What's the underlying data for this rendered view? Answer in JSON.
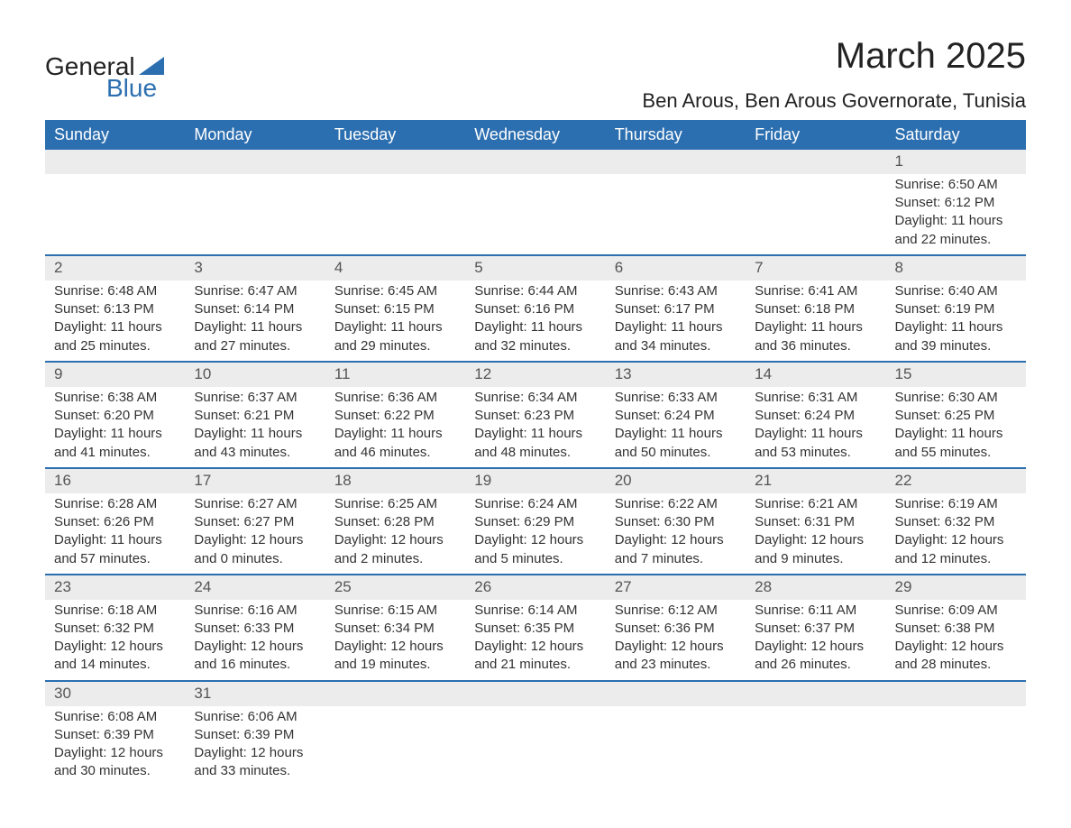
{
  "logo": {
    "text1": "General",
    "text2": "Blue"
  },
  "title": "March 2025",
  "location": "Ben Arous, Ben Arous Governorate, Tunisia",
  "colors": {
    "header_bg": "#2c6fb0",
    "header_text": "#ffffff",
    "daynum_bg": "#ececec",
    "daynum_text": "#555555",
    "body_text": "#333333",
    "row_divider": "#2c6fb0",
    "logo_accent": "#2c6fb0"
  },
  "typography": {
    "title_fontsize": 40,
    "location_fontsize": 22,
    "header_fontsize": 18,
    "daynum_fontsize": 17,
    "cell_fontsize": 15
  },
  "columns": [
    "Sunday",
    "Monday",
    "Tuesday",
    "Wednesday",
    "Thursday",
    "Friday",
    "Saturday"
  ],
  "weeks": [
    {
      "nums": [
        "",
        "",
        "",
        "",
        "",
        "",
        "1"
      ],
      "cells": [
        null,
        null,
        null,
        null,
        null,
        null,
        {
          "sunrise": "Sunrise: 6:50 AM",
          "sunset": "Sunset: 6:12 PM",
          "daylight": "Daylight: 11 hours and 22 minutes."
        }
      ]
    },
    {
      "nums": [
        "2",
        "3",
        "4",
        "5",
        "6",
        "7",
        "8"
      ],
      "cells": [
        {
          "sunrise": "Sunrise: 6:48 AM",
          "sunset": "Sunset: 6:13 PM",
          "daylight": "Daylight: 11 hours and 25 minutes."
        },
        {
          "sunrise": "Sunrise: 6:47 AM",
          "sunset": "Sunset: 6:14 PM",
          "daylight": "Daylight: 11 hours and 27 minutes."
        },
        {
          "sunrise": "Sunrise: 6:45 AM",
          "sunset": "Sunset: 6:15 PM",
          "daylight": "Daylight: 11 hours and 29 minutes."
        },
        {
          "sunrise": "Sunrise: 6:44 AM",
          "sunset": "Sunset: 6:16 PM",
          "daylight": "Daylight: 11 hours and 32 minutes."
        },
        {
          "sunrise": "Sunrise: 6:43 AM",
          "sunset": "Sunset: 6:17 PM",
          "daylight": "Daylight: 11 hours and 34 minutes."
        },
        {
          "sunrise": "Sunrise: 6:41 AM",
          "sunset": "Sunset: 6:18 PM",
          "daylight": "Daylight: 11 hours and 36 minutes."
        },
        {
          "sunrise": "Sunrise: 6:40 AM",
          "sunset": "Sunset: 6:19 PM",
          "daylight": "Daylight: 11 hours and 39 minutes."
        }
      ]
    },
    {
      "nums": [
        "9",
        "10",
        "11",
        "12",
        "13",
        "14",
        "15"
      ],
      "cells": [
        {
          "sunrise": "Sunrise: 6:38 AM",
          "sunset": "Sunset: 6:20 PM",
          "daylight": "Daylight: 11 hours and 41 minutes."
        },
        {
          "sunrise": "Sunrise: 6:37 AM",
          "sunset": "Sunset: 6:21 PM",
          "daylight": "Daylight: 11 hours and 43 minutes."
        },
        {
          "sunrise": "Sunrise: 6:36 AM",
          "sunset": "Sunset: 6:22 PM",
          "daylight": "Daylight: 11 hours and 46 minutes."
        },
        {
          "sunrise": "Sunrise: 6:34 AM",
          "sunset": "Sunset: 6:23 PM",
          "daylight": "Daylight: 11 hours and 48 minutes."
        },
        {
          "sunrise": "Sunrise: 6:33 AM",
          "sunset": "Sunset: 6:24 PM",
          "daylight": "Daylight: 11 hours and 50 minutes."
        },
        {
          "sunrise": "Sunrise: 6:31 AM",
          "sunset": "Sunset: 6:24 PM",
          "daylight": "Daylight: 11 hours and 53 minutes."
        },
        {
          "sunrise": "Sunrise: 6:30 AM",
          "sunset": "Sunset: 6:25 PM",
          "daylight": "Daylight: 11 hours and 55 minutes."
        }
      ]
    },
    {
      "nums": [
        "16",
        "17",
        "18",
        "19",
        "20",
        "21",
        "22"
      ],
      "cells": [
        {
          "sunrise": "Sunrise: 6:28 AM",
          "sunset": "Sunset: 6:26 PM",
          "daylight": "Daylight: 11 hours and 57 minutes."
        },
        {
          "sunrise": "Sunrise: 6:27 AM",
          "sunset": "Sunset: 6:27 PM",
          "daylight": "Daylight: 12 hours and 0 minutes."
        },
        {
          "sunrise": "Sunrise: 6:25 AM",
          "sunset": "Sunset: 6:28 PM",
          "daylight": "Daylight: 12 hours and 2 minutes."
        },
        {
          "sunrise": "Sunrise: 6:24 AM",
          "sunset": "Sunset: 6:29 PM",
          "daylight": "Daylight: 12 hours and 5 minutes."
        },
        {
          "sunrise": "Sunrise: 6:22 AM",
          "sunset": "Sunset: 6:30 PM",
          "daylight": "Daylight: 12 hours and 7 minutes."
        },
        {
          "sunrise": "Sunrise: 6:21 AM",
          "sunset": "Sunset: 6:31 PM",
          "daylight": "Daylight: 12 hours and 9 minutes."
        },
        {
          "sunrise": "Sunrise: 6:19 AM",
          "sunset": "Sunset: 6:32 PM",
          "daylight": "Daylight: 12 hours and 12 minutes."
        }
      ]
    },
    {
      "nums": [
        "23",
        "24",
        "25",
        "26",
        "27",
        "28",
        "29"
      ],
      "cells": [
        {
          "sunrise": "Sunrise: 6:18 AM",
          "sunset": "Sunset: 6:32 PM",
          "daylight": "Daylight: 12 hours and 14 minutes."
        },
        {
          "sunrise": "Sunrise: 6:16 AM",
          "sunset": "Sunset: 6:33 PM",
          "daylight": "Daylight: 12 hours and 16 minutes."
        },
        {
          "sunrise": "Sunrise: 6:15 AM",
          "sunset": "Sunset: 6:34 PM",
          "daylight": "Daylight: 12 hours and 19 minutes."
        },
        {
          "sunrise": "Sunrise: 6:14 AM",
          "sunset": "Sunset: 6:35 PM",
          "daylight": "Daylight: 12 hours and 21 minutes."
        },
        {
          "sunrise": "Sunrise: 6:12 AM",
          "sunset": "Sunset: 6:36 PM",
          "daylight": "Daylight: 12 hours and 23 minutes."
        },
        {
          "sunrise": "Sunrise: 6:11 AM",
          "sunset": "Sunset: 6:37 PM",
          "daylight": "Daylight: 12 hours and 26 minutes."
        },
        {
          "sunrise": "Sunrise: 6:09 AM",
          "sunset": "Sunset: 6:38 PM",
          "daylight": "Daylight: 12 hours and 28 minutes."
        }
      ]
    },
    {
      "nums": [
        "30",
        "31",
        "",
        "",
        "",
        "",
        ""
      ],
      "cells": [
        {
          "sunrise": "Sunrise: 6:08 AM",
          "sunset": "Sunset: 6:39 PM",
          "daylight": "Daylight: 12 hours and 30 minutes."
        },
        {
          "sunrise": "Sunrise: 6:06 AM",
          "sunset": "Sunset: 6:39 PM",
          "daylight": "Daylight: 12 hours and 33 minutes."
        },
        null,
        null,
        null,
        null,
        null
      ]
    }
  ]
}
